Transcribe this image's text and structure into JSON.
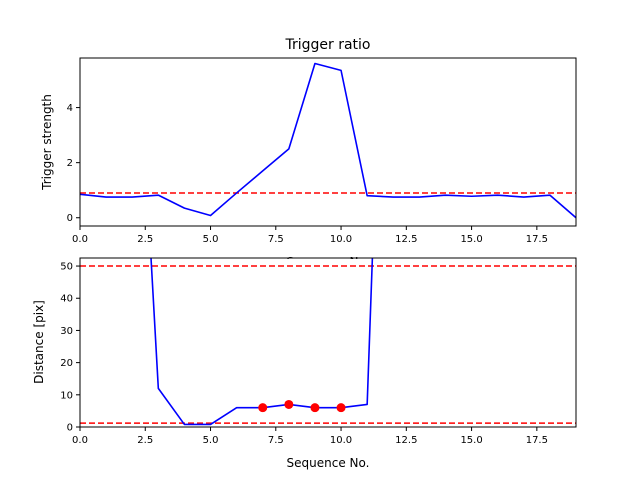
{
  "chart_data": [
    {
      "type": "line",
      "title": "Trigger ratio",
      "xlabel": "Sequence No.",
      "ylabel": "Trigger strength",
      "xlim": [
        0,
        19
      ],
      "ylim": [
        -0.3,
        5.8
      ],
      "xticks": [
        0,
        2.5,
        5,
        7.5,
        10,
        12.5,
        15,
        17.5
      ],
      "xtick_labels": [
        "0.0",
        "2.5",
        "5.0",
        "7.5",
        "10.0",
        "12.5",
        "15.0",
        "17.5"
      ],
      "yticks": [
        0,
        2,
        4
      ],
      "ytick_labels": [
        "0",
        "2",
        "4"
      ],
      "grid": false,
      "series": [
        {
          "color": "#0000ff",
          "style": "solid",
          "x": [
            0,
            1,
            2,
            3,
            4,
            5,
            6,
            7,
            8,
            9,
            10,
            11,
            12,
            13,
            14,
            15,
            16,
            17,
            18,
            19
          ],
          "y": [
            0.85,
            0.75,
            0.75,
            0.82,
            0.35,
            0.08,
            0.9,
            1.7,
            2.5,
            5.6,
            5.35,
            0.8,
            0.75,
            0.75,
            0.82,
            0.78,
            0.82,
            0.75,
            0.82,
            0.0
          ]
        }
      ],
      "hlines": [
        {
          "y": 0.9,
          "color": "#ff0000",
          "style": "dashed"
        }
      ]
    },
    {
      "type": "line",
      "title": "",
      "xlabel": "Sequence No.",
      "ylabel": "Distance [pix]",
      "xlim": [
        0,
        19
      ],
      "ylim": [
        0,
        52.5
      ],
      "xticks": [
        0,
        2.5,
        5,
        7.5,
        10,
        12.5,
        15,
        17.5
      ],
      "xtick_labels": [
        "0.0",
        "2.5",
        "5.0",
        "7.5",
        "10.0",
        "12.5",
        "15.0",
        "17.5"
      ],
      "yticks": [
        0,
        10,
        20,
        30,
        40,
        50
      ],
      "ytick_labels": [
        "0",
        "10",
        "20",
        "30",
        "40",
        "50"
      ],
      "grid": false,
      "series": [
        {
          "color": "#0000ff",
          "style": "solid",
          "x": [
            2.72,
            3,
            4,
            5,
            6,
            7,
            8,
            9,
            10,
            11,
            11.2
          ],
          "y": [
            52.5,
            12,
            0.8,
            0.8,
            6,
            6,
            7,
            6,
            6,
            7,
            52.5
          ]
        },
        {
          "color": "#ff0000",
          "style": "markers",
          "x": [
            7,
            8,
            9,
            10
          ],
          "y": [
            6,
            7,
            6,
            6
          ]
        }
      ],
      "hlines": [
        {
          "y": 50,
          "color": "#ff0000",
          "style": "dashed"
        },
        {
          "y": 1.2,
          "color": "#ff0000",
          "style": "dashed"
        }
      ]
    }
  ]
}
